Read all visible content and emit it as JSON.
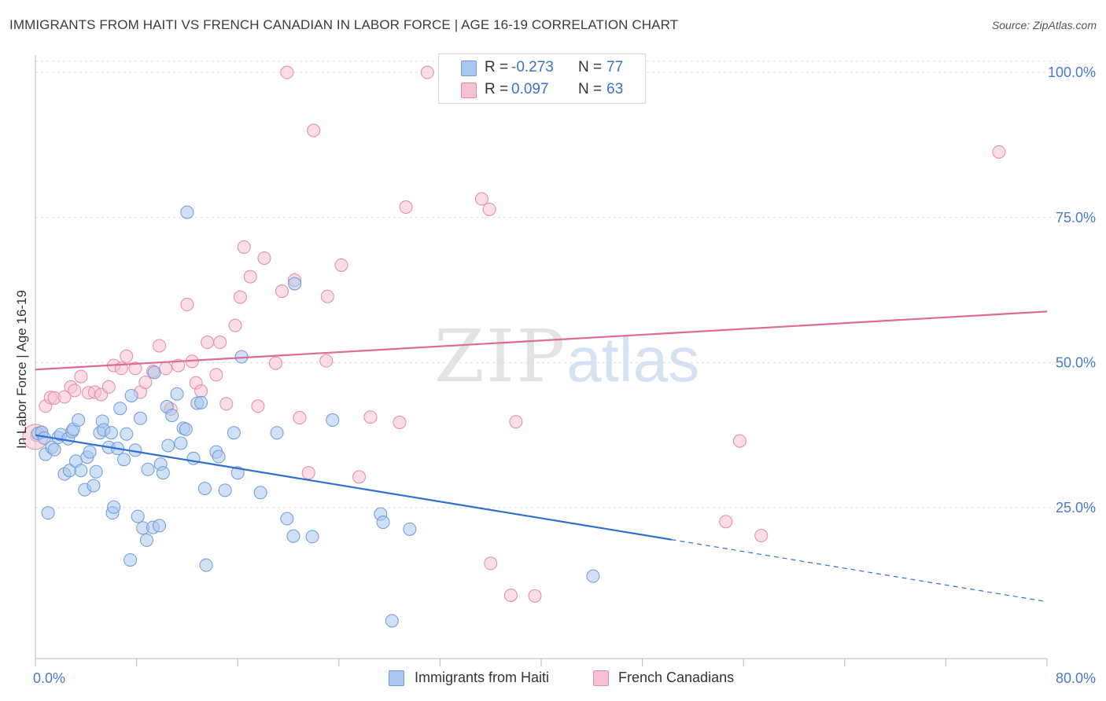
{
  "title": "IMMIGRANTS FROM HAITI VS FRENCH CANADIAN IN LABOR FORCE | AGE 16-19 CORRELATION CHART",
  "source": "Source: ZipAtlas.com",
  "watermark": {
    "zip": "ZIP",
    "atlas": "atlas"
  },
  "legend": {
    "r_label": "R =",
    "n_label": "N =",
    "rows": [
      {
        "r": "-0.273",
        "n": "77"
      },
      {
        "r": "0.097",
        "n": "63"
      }
    ]
  },
  "colors": {
    "haiti_fill": "#aac8ef",
    "haiti_stroke": "#6f9ad8",
    "haiti_line": "#2f6fd0",
    "french_fill": "#f7c1d1",
    "french_stroke": "#e489a6",
    "french_line": "#e06a93",
    "tick_text": "#4a7ac7",
    "grid": "#dcdcdc"
  },
  "chart_data": {
    "type": "scatter",
    "title": "IMMIGRANTS FROM HAITI VS FRENCH CANADIAN IN LABOR FORCE | AGE 16-19 CORRELATION CHART",
    "xlabel": "",
    "ylabel": "In Labor Force | Age 16-19",
    "x_tick_labels": [
      "0.0%",
      "80.0%"
    ],
    "y_tick_labels": [
      "100.0%",
      "75.0%",
      "50.0%",
      "25.0%"
    ],
    "y_ticks": [
      100,
      75,
      50,
      25
    ],
    "xlim": [
      0,
      80
    ],
    "ylim": [
      -1,
      103
    ],
    "grid": true,
    "legend_position": "bottom",
    "series": [
      {
        "name": "Immigrants from Haiti",
        "r": -0.273,
        "n": 77,
        "trend": {
          "x0": 0,
          "y0": 37.5,
          "x1": 50.3,
          "y1": 19.5,
          "dash_to_x": 80,
          "dash_to_y": 8.8
        },
        "points": [
          [
            0.2,
            37.8
          ],
          [
            0.5,
            38.0
          ],
          [
            0.7,
            37.0
          ],
          [
            0.8,
            34.2
          ],
          [
            1.0,
            24.1
          ],
          [
            1.3,
            35.4
          ],
          [
            1.5,
            35.0
          ],
          [
            1.8,
            37.1
          ],
          [
            2.0,
            37.6
          ],
          [
            2.3,
            30.8
          ],
          [
            2.6,
            36.9
          ],
          [
            2.7,
            31.4
          ],
          [
            2.9,
            38.1
          ],
          [
            3.0,
            38.5
          ],
          [
            3.2,
            33.0
          ],
          [
            3.4,
            40.1
          ],
          [
            3.6,
            31.4
          ],
          [
            3.9,
            28.1
          ],
          [
            4.1,
            33.7
          ],
          [
            4.3,
            34.6
          ],
          [
            4.6,
            28.8
          ],
          [
            4.8,
            31.2
          ],
          [
            5.1,
            37.9
          ],
          [
            5.3,
            39.9
          ],
          [
            5.4,
            38.4
          ],
          [
            5.8,
            35.4
          ],
          [
            6.0,
            37.9
          ],
          [
            6.1,
            24.1
          ],
          [
            6.2,
            25.1
          ],
          [
            6.5,
            35.2
          ],
          [
            6.7,
            42.1
          ],
          [
            7.0,
            33.3
          ],
          [
            7.2,
            37.7
          ],
          [
            7.5,
            16.0
          ],
          [
            7.6,
            44.3
          ],
          [
            7.9,
            34.9
          ],
          [
            8.1,
            23.5
          ],
          [
            8.3,
            40.4
          ],
          [
            8.5,
            21.5
          ],
          [
            8.8,
            19.4
          ],
          [
            8.9,
            31.6
          ],
          [
            9.3,
            21.6
          ],
          [
            9.4,
            48.3
          ],
          [
            9.8,
            21.9
          ],
          [
            9.9,
            32.5
          ],
          [
            10.1,
            31.0
          ],
          [
            10.4,
            42.4
          ],
          [
            10.5,
            35.7
          ],
          [
            10.8,
            40.9
          ],
          [
            11.2,
            44.6
          ],
          [
            11.5,
            36.1
          ],
          [
            11.7,
            38.7
          ],
          [
            11.9,
            38.5
          ],
          [
            12.0,
            75.9
          ],
          [
            12.5,
            33.5
          ],
          [
            12.8,
            43.0
          ],
          [
            13.1,
            43.1
          ],
          [
            13.4,
            28.3
          ],
          [
            13.5,
            15.1
          ],
          [
            14.3,
            34.6
          ],
          [
            14.5,
            33.8
          ],
          [
            15.0,
            28.0
          ],
          [
            15.7,
            37.9
          ],
          [
            16.0,
            31.0
          ],
          [
            16.3,
            51.0
          ],
          [
            17.8,
            27.6
          ],
          [
            19.1,
            37.9
          ],
          [
            19.9,
            23.1
          ],
          [
            20.4,
            20.1
          ],
          [
            20.5,
            63.6
          ],
          [
            21.9,
            20.0
          ],
          [
            23.5,
            40.1
          ],
          [
            27.3,
            23.9
          ],
          [
            27.5,
            22.5
          ],
          [
            28.2,
            5.5
          ],
          [
            29.6,
            21.3
          ],
          [
            44.1,
            13.2
          ]
        ]
      },
      {
        "name": "French Canadians",
        "r": 0.097,
        "n": 63,
        "trend": {
          "x0": 0,
          "y0": 48.8,
          "x1": 80,
          "y1": 58.8
        },
        "points": [
          [
            0.1,
            37.5
          ],
          [
            0.8,
            42.5
          ],
          [
            1.2,
            44.0
          ],
          [
            1.5,
            43.9
          ],
          [
            2.3,
            44.1
          ],
          [
            2.8,
            45.8
          ],
          [
            3.1,
            45.2
          ],
          [
            3.6,
            47.6
          ],
          [
            4.2,
            44.8
          ],
          [
            4.7,
            44.9
          ],
          [
            5.2,
            44.5
          ],
          [
            5.8,
            45.8
          ],
          [
            6.2,
            49.5
          ],
          [
            6.8,
            49.0
          ],
          [
            7.2,
            51.1
          ],
          [
            7.9,
            49.0
          ],
          [
            8.3,
            44.9
          ],
          [
            8.7,
            46.6
          ],
          [
            9.3,
            48.5
          ],
          [
            9.8,
            52.9
          ],
          [
            10.3,
            49.0
          ],
          [
            10.7,
            42.0
          ],
          [
            11.3,
            49.5
          ],
          [
            12.0,
            60.0
          ],
          [
            12.4,
            50.2
          ],
          [
            12.7,
            46.5
          ],
          [
            13.1,
            45.1
          ],
          [
            13.6,
            53.5
          ],
          [
            14.3,
            47.9
          ],
          [
            14.6,
            53.5
          ],
          [
            15.1,
            42.9
          ],
          [
            15.8,
            56.4
          ],
          [
            16.2,
            61.3
          ],
          [
            16.5,
            69.9
          ],
          [
            17.0,
            64.8
          ],
          [
            17.6,
            42.5
          ],
          [
            18.1,
            68.0
          ],
          [
            19.0,
            49.9
          ],
          [
            19.5,
            62.3
          ],
          [
            19.9,
            100.0
          ],
          [
            20.5,
            64.2
          ],
          [
            20.9,
            40.5
          ],
          [
            21.6,
            31.0
          ],
          [
            22.0,
            90.0
          ],
          [
            23.0,
            50.3
          ],
          [
            23.1,
            61.4
          ],
          [
            24.2,
            66.8
          ],
          [
            25.6,
            30.3
          ],
          [
            26.5,
            40.6
          ],
          [
            28.8,
            39.7
          ],
          [
            29.3,
            76.8
          ],
          [
            31.0,
            100.0
          ],
          [
            35.3,
            78.2
          ],
          [
            35.9,
            76.4
          ],
          [
            36.0,
            15.4
          ],
          [
            37.6,
            9.9
          ],
          [
            38.0,
            39.8
          ],
          [
            39.5,
            9.8
          ],
          [
            54.6,
            22.6
          ],
          [
            55.7,
            36.5
          ],
          [
            57.4,
            20.2
          ],
          [
            76.2,
            86.3
          ],
          [
            0.0,
            37.2
          ]
        ]
      }
    ]
  },
  "bottom_legend": [
    "Immigrants from Haiti",
    "French Canadians"
  ]
}
